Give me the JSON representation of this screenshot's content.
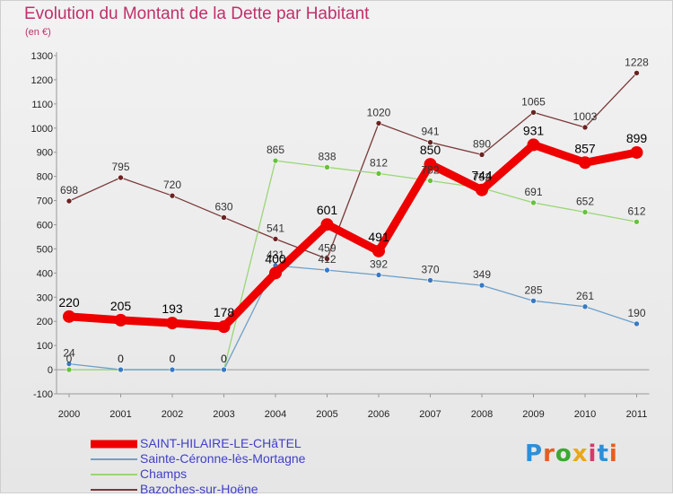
{
  "title": "Evolution du Montant de la Dette par Habitant",
  "unit": "(en €)",
  "logo": {
    "letters": [
      "P",
      "r",
      "o",
      "x",
      "i",
      "t",
      "i"
    ],
    "colors": [
      "#2e8fd6",
      "#e85d20",
      "#3da832",
      "#e8a81c",
      "#d63a6b",
      "#2e8fd6",
      "#e85d20"
    ]
  },
  "chart_data": {
    "type": "line",
    "x": [
      "2000",
      "2001",
      "2002",
      "2003",
      "2004",
      "2005",
      "2006",
      "2007",
      "2008",
      "2009",
      "2010",
      "2011"
    ],
    "ylim": [
      -100,
      1300
    ],
    "yticks": [
      "-100",
      "0",
      "100",
      "200",
      "300",
      "400",
      "500",
      "600",
      "700",
      "800",
      "900",
      "1000",
      "1100",
      "1200",
      "1300"
    ],
    "grid": false,
    "legend_position": "bottom-left",
    "series": [
      {
        "name": "SAINT-HILAIRE-LE-CHâTEL",
        "color": "#ee0000",
        "marker": "#ee0000",
        "width": 9,
        "main": true,
        "values": [
          220,
          205,
          193,
          178,
          400,
          601,
          491,
          850,
          744,
          931,
          857,
          899
        ],
        "labels": [
          "220",
          "205",
          "193",
          "178",
          "400",
          "601",
          "491",
          "850",
          "744",
          "931",
          "857",
          "899"
        ]
      },
      {
        "name": "Sainte-Céronne-lès-Mortagne",
        "color": "#6fa0c8",
        "marker": "#3a78c2",
        "width": 1.3,
        "main": false,
        "values": [
          24,
          0,
          0,
          0,
          431,
          412,
          392,
          370,
          349,
          285,
          261,
          190
        ],
        "labels": [
          "24",
          "0",
          "0",
          "0",
          "431",
          "412",
          "392",
          "370",
          "349",
          "285",
          "261",
          "190"
        ]
      },
      {
        "name": "Champs",
        "color": "#9ad676",
        "marker": "#66c23a",
        "width": 1.3,
        "main": false,
        "values": [
          0,
          0,
          0,
          0,
          865,
          838,
          812,
          782,
          752,
          691,
          652,
          612
        ],
        "labels": [
          "0",
          "0",
          "0",
          "0",
          "865",
          "838",
          "812",
          "782",
          "752",
          "691",
          "652",
          "612"
        ]
      },
      {
        "name": "Bazoches-sur-Hoëne",
        "color": "#7a3a3a",
        "marker": "#6b2222",
        "width": 1.3,
        "main": false,
        "values": [
          698,
          795,
          720,
          630,
          541,
          459,
          1020,
          941,
          890,
          1065,
          1003,
          1228
        ],
        "labels": [
          "698",
          "795",
          "720",
          "630",
          "541",
          "459",
          "1020",
          "941",
          "890",
          "1065",
          "1003",
          "1228"
        ]
      }
    ]
  }
}
